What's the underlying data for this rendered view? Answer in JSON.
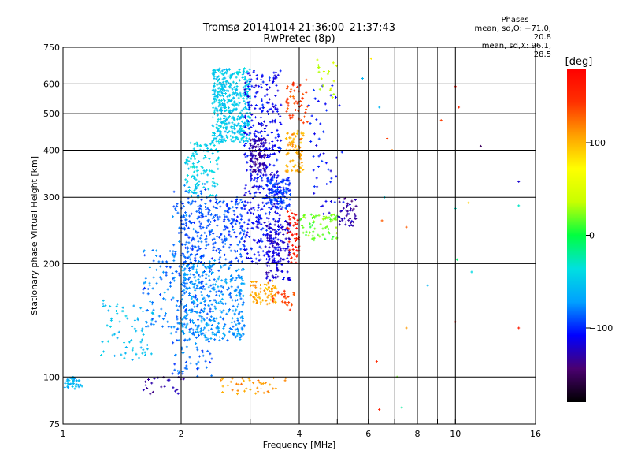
{
  "title": "Tromsø 20141014 21:36:00–21:37:43",
  "subtitle": "RwPretec (8p)",
  "phases": {
    "header": "Phases",
    "line_o": "mean, sd,O:  −71.0, 20.8",
    "line_x": "mean, sd,X:  96.1, 28.5"
  },
  "colorbar": {
    "unit": "[deg]",
    "range": [
      -180,
      180
    ],
    "ticks": [
      {
        "value": 100,
        "label": "100"
      },
      {
        "value": 0,
        "label": "0"
      },
      {
        "value": -100,
        "label": "−100"
      }
    ],
    "colors": [
      "#000000",
      "#4a0070",
      "#0000ff",
      "#00a0ff",
      "#00e0e0",
      "#00ff40",
      "#c8ff00",
      "#ffff00",
      "#ffa000",
      "#ff3000",
      "#ff0000"
    ]
  },
  "chart_data": {
    "type": "scatter",
    "xlabel": "Frequency [MHz]",
    "ylabel": "Stationary phase Virtual Height [km]",
    "x_scale": "log",
    "y_scale": "log",
    "xlim": [
      1,
      16
    ],
    "ylim": [
      75,
      750
    ],
    "grid": true,
    "x_ticks": [
      1,
      2,
      4,
      6,
      8,
      10,
      16
    ],
    "x_tick_labels": [
      "1",
      "2",
      "4",
      "6",
      "8",
      "10",
      "16"
    ],
    "x_minor_ticks": [
      3,
      5,
      7,
      9
    ],
    "y_ticks": [
      75,
      100,
      200,
      300,
      400,
      500,
      600,
      750
    ],
    "y_tick_labels": [
      "75",
      "100",
      "200",
      "300",
      "400",
      "500",
      "600",
      "750"
    ],
    "color_meaning": "phase [deg]",
    "clusters": [
      {
        "f": [
          1.0,
          1.12
        ],
        "h": [
          93,
          100
        ],
        "phase": -60,
        "n": 40
      },
      {
        "f": [
          1.25,
          1.7
        ],
        "h": [
          110,
          160
        ],
        "phase": -55,
        "n": 70
      },
      {
        "f": [
          1.6,
          2.1
        ],
        "h": [
          130,
          220
        ],
        "phase": -80,
        "n": 120
      },
      {
        "f": [
          1.9,
          2.4
        ],
        "h": [
          100,
          330
        ],
        "phase": -85,
        "n": 180
      },
      {
        "f": [
          2.0,
          2.9
        ],
        "h": [
          125,
          200
        ],
        "phase": -75,
        "n": 380
      },
      {
        "f": [
          2.0,
          2.9
        ],
        "h": [
          200,
          300
        ],
        "phase": -90,
        "n": 260
      },
      {
        "f": [
          2.05,
          2.5
        ],
        "h": [
          300,
          420
        ],
        "phase": -45,
        "n": 130
      },
      {
        "f": [
          2.4,
          3.0
        ],
        "h": [
          420,
          660
        ],
        "phase": -50,
        "n": 460
      },
      {
        "f": [
          2.9,
          3.6
        ],
        "h": [
          200,
          650
        ],
        "phase": -110,
        "n": 420
      },
      {
        "f": [
          3.0,
          3.3
        ],
        "h": [
          350,
          430
        ],
        "phase": -130,
        "n": 110
      },
      {
        "f": [
          3.3,
          3.8
        ],
        "h": [
          280,
          340
        ],
        "phase": -95,
        "n": 140
      },
      {
        "f": [
          3.3,
          3.8
        ],
        "h": [
          180,
          260
        ],
        "phase": -120,
        "n": 150
      },
      {
        "f": [
          3.0,
          3.5
        ],
        "h": [
          155,
          180
        ],
        "phase": 105,
        "n": 70
      },
      {
        "f": [
          3.4,
          3.9
        ],
        "h": [
          150,
          170
        ],
        "phase": 140,
        "n": 25
      },
      {
        "f": [
          3.7,
          4.1
        ],
        "h": [
          350,
          450
        ],
        "phase": 105,
        "n": 80
      },
      {
        "f": [
          3.7,
          4.2
        ],
        "h": [
          470,
          620
        ],
        "phase": 140,
        "n": 50
      },
      {
        "f": [
          3.7,
          4.0
        ],
        "h": [
          200,
          280
        ],
        "phase": 165,
        "n": 55
      },
      {
        "f": [
          4.0,
          5.0
        ],
        "h": [
          230,
          270
        ],
        "phase": 20,
        "n": 70
      },
      {
        "f": [
          4.2,
          5.2
        ],
        "h": [
          270,
          600
        ],
        "phase": -105,
        "n": 50
      },
      {
        "f": [
          4.4,
          5.0
        ],
        "h": [
          550,
          700
        ],
        "phase": 40,
        "n": 18
      },
      {
        "f": [
          5.0,
          5.6
        ],
        "h": [
          250,
          300
        ],
        "phase": -130,
        "n": 45
      },
      {
        "f": [
          2.5,
          3.7
        ],
        "h": [
          90,
          100
        ],
        "phase": 110,
        "n": 40
      },
      {
        "f": [
          1.6,
          2.1
        ],
        "h": [
          90,
          100
        ],
        "phase": -130,
        "n": 22
      }
    ],
    "scattered_points": [
      {
        "f": 6.3,
        "h": 110,
        "phase": 150
      },
      {
        "f": 6.4,
        "h": 82,
        "phase": 160
      },
      {
        "f": 6.4,
        "h": 520,
        "phase": -60
      },
      {
        "f": 6.5,
        "h": 260,
        "phase": 130
      },
      {
        "f": 6.6,
        "h": 300,
        "phase": -40
      },
      {
        "f": 7.5,
        "h": 250,
        "phase": 130
      },
      {
        "f": 7.3,
        "h": 83,
        "phase": -20
      },
      {
        "f": 7.5,
        "h": 135,
        "phase": 110
      },
      {
        "f": 8.5,
        "h": 175,
        "phase": -60
      },
      {
        "f": 9.2,
        "h": 480,
        "phase": 140
      },
      {
        "f": 10.0,
        "h": 590,
        "phase": 170
      },
      {
        "f": 10.0,
        "h": 280,
        "phase": -30
      },
      {
        "f": 10.1,
        "h": 205,
        "phase": -10
      },
      {
        "f": 10.0,
        "h": 140,
        "phase": 160
      },
      {
        "f": 10.2,
        "h": 520,
        "phase": 150
      },
      {
        "f": 10.8,
        "h": 290,
        "phase": 90
      },
      {
        "f": 11.0,
        "h": 190,
        "phase": -40
      },
      {
        "f": 11.6,
        "h": 410,
        "phase": -150
      },
      {
        "f": 14.5,
        "h": 285,
        "phase": -30
      },
      {
        "f": 14.5,
        "h": 330,
        "phase": -120
      },
      {
        "f": 14.5,
        "h": 135,
        "phase": 160
      },
      {
        "f": 6.9,
        "h": 400,
        "phase": 120
      },
      {
        "f": 6.7,
        "h": 430,
        "phase": 140
      },
      {
        "f": 7.1,
        "h": 100,
        "phase": 20
      },
      {
        "f": 5.8,
        "h": 620,
        "phase": -60
      },
      {
        "f": 6.1,
        "h": 700,
        "phase": 80
      }
    ]
  }
}
